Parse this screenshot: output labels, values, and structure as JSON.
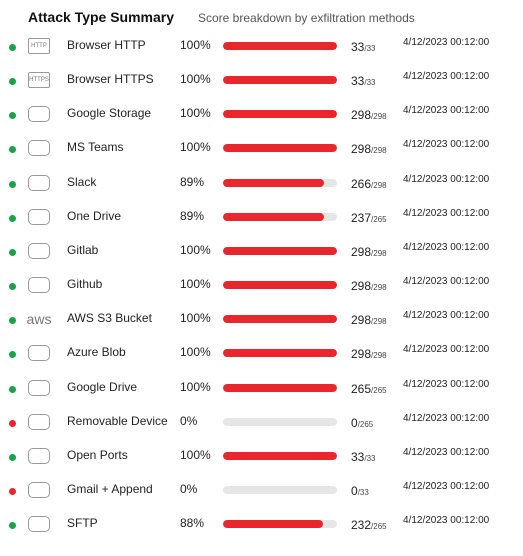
{
  "header": {
    "title": "Attack Type Summary",
    "subtitle": "Score breakdown by exfiltration methods"
  },
  "bar_color": "#e8262b",
  "track_color": "#e6e6e6",
  "rows": [
    {
      "status_color": "#1aa14a",
      "icon_text": "HTTP",
      "name": "Browser HTTP",
      "percent": {
        "value": 100,
        "label": "100%"
      },
      "score": 33,
      "total": "/33",
      "date": "4/12/2023 00:12:00"
    },
    {
      "status_color": "#1aa14a",
      "icon_text": "HTTPS",
      "name": "Browser HTTPS",
      "percent": {
        "value": 100,
        "label": "100%"
      },
      "score": 33,
      "total": "/33",
      "date": "4/12/2023 00:12:00"
    },
    {
      "status_color": "#1aa14a",
      "name": "Google Storage",
      "percent": {
        "value": 100,
        "label": "100%"
      },
      "score": 298,
      "total": "/298",
      "date": "4/12/2023 00:12:00"
    },
    {
      "status_color": "#1aa14a",
      "name": "MS Teams",
      "percent": {
        "value": 100,
        "label": "100%"
      },
      "score": 298,
      "total": "/298",
      "date": "4/12/2023 00:12:00"
    },
    {
      "status_color": "#1aa14a",
      "name": "Slack",
      "percent": {
        "value": 89,
        "label": "89%"
      },
      "score": 266,
      "total": "/298",
      "date": "4/12/2023 00:12:00"
    },
    {
      "status_color": "#1aa14a",
      "name": "One Drive",
      "percent": {
        "value": 89,
        "label": "89%"
      },
      "score": 237,
      "total": "/265",
      "date": "4/12/2023 00:12:00"
    },
    {
      "status_color": "#1aa14a",
      "name": "Gitlab",
      "percent": {
        "value": 100,
        "label": "100%"
      },
      "score": 298,
      "total": "/298",
      "date": "4/12/2023 00:12:00"
    },
    {
      "status_color": "#1aa14a",
      "name": "Github",
      "percent": {
        "value": 100,
        "label": "100%"
      },
      "score": 298,
      "total": "/298",
      "date": "4/12/2023 00:12:00"
    },
    {
      "status_color": "#1aa14a",
      "icon_text": "aws",
      "name": "AWS S3 Bucket",
      "percent": {
        "value": 100,
        "label": "100%"
      },
      "score": 298,
      "total": "/298",
      "date": "4/12/2023 00:12:00"
    },
    {
      "status_color": "#1aa14a",
      "name": "Azure Blob",
      "percent": {
        "value": 100,
        "label": "100%"
      },
      "score": 298,
      "total": "/298",
      "date": "4/12/2023 00:12:00"
    },
    {
      "status_color": "#1aa14a",
      "name": "Google Drive",
      "percent": {
        "value": 100,
        "label": "100%"
      },
      "score": 265,
      "total": "/265",
      "date": "4/12/2023 00:12:00"
    },
    {
      "status_color": "#e8262b",
      "name": "Removable Device",
      "percent": {
        "value": 0,
        "label": "0%"
      },
      "score": 0,
      "total": "/265",
      "date": "4/12/2023 00:12:00"
    },
    {
      "status_color": "#1aa14a",
      "name": "Open Ports",
      "percent": {
        "value": 100,
        "label": "100%"
      },
      "score": 33,
      "total": "/33",
      "date": "4/12/2023 00:12:00"
    },
    {
      "status_color": "#e8262b",
      "name": "Gmail + Append",
      "percent": {
        "value": 0,
        "label": "0%"
      },
      "score": 0,
      "total": "/33",
      "date": "4/12/2023 00:12:00"
    },
    {
      "status_color": "#1aa14a",
      "name": "SFTP",
      "percent": {
        "value": 88,
        "label": "88%"
      },
      "score": 232,
      "total": "/265",
      "date": "4/12/2023 00:12:00"
    }
  ]
}
